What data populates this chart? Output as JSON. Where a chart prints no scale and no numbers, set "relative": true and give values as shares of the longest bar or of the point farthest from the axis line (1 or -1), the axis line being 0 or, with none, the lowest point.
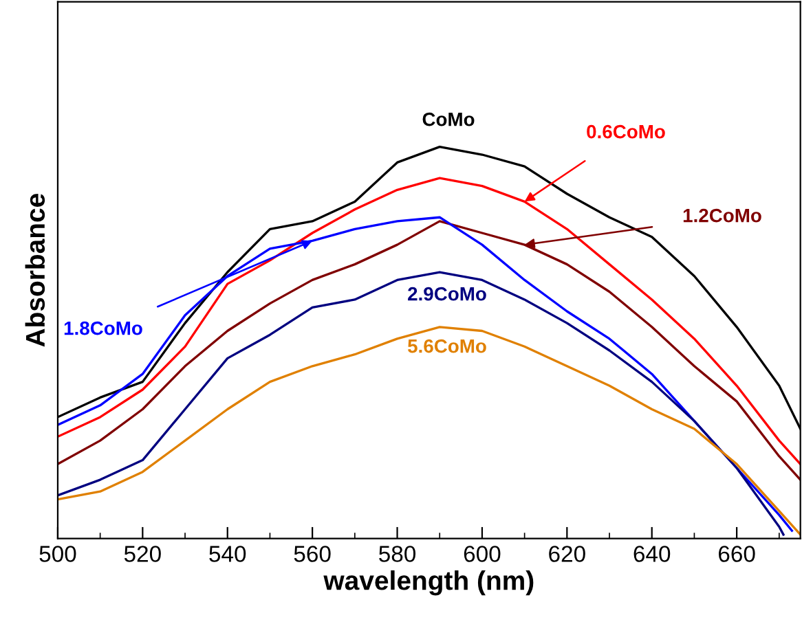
{
  "chart_data": {
    "type": "line",
    "relative": true,
    "xlabel": "wavelength (nm)",
    "ylabel": "Absorbance",
    "xlim": [
      500,
      675
    ],
    "xticks": [
      500,
      520,
      540,
      560,
      580,
      600,
      620,
      640,
      660
    ],
    "grid": false,
    "legend": false,
    "marker": "none",
    "line_style": "solid",
    "x": [
      500,
      510,
      520,
      530,
      540,
      550,
      560,
      570,
      580,
      590,
      600,
      610,
      620,
      630,
      640,
      650,
      660,
      670,
      675
    ],
    "series": [
      {
        "name": "CoMo",
        "color": "#000000",
        "values": [
          0.31,
          0.36,
          0.4,
          0.55,
          0.68,
          0.79,
          0.81,
          0.86,
          0.96,
          1.0,
          0.98,
          0.95,
          0.88,
          0.82,
          0.77,
          0.67,
          0.54,
          0.39,
          0.28
        ]
      },
      {
        "name": "0.6CoMo",
        "color": "#ff0000",
        "values": [
          0.26,
          0.31,
          0.38,
          0.49,
          0.65,
          0.71,
          0.78,
          0.84,
          0.89,
          0.92,
          0.9,
          0.86,
          0.79,
          0.7,
          0.61,
          0.51,
          0.39,
          0.25,
          0.19
        ]
      },
      {
        "name": "1.2CoMo",
        "color": "#800000",
        "values": [
          0.19,
          0.25,
          0.33,
          0.44,
          0.53,
          0.6,
          0.66,
          0.7,
          0.75,
          0.81,
          0.78,
          0.75,
          0.7,
          0.63,
          0.54,
          0.44,
          0.35,
          0.21,
          0.15
        ]
      },
      {
        "name": "1.8CoMo",
        "color": "#0000ff",
        "x": [
          500,
          510,
          520,
          530,
          540,
          550,
          560,
          570,
          580,
          590,
          600,
          610,
          620,
          630,
          640,
          650,
          660,
          670,
          673
        ],
        "values": [
          0.29,
          0.34,
          0.42,
          0.57,
          0.67,
          0.74,
          0.76,
          0.79,
          0.81,
          0.82,
          0.75,
          0.66,
          0.58,
          0.51,
          0.42,
          0.3,
          0.18,
          0.06,
          0.02
        ]
      },
      {
        "name": "2.9CoMo",
        "color": "#000080",
        "x": [
          500,
          510,
          520,
          530,
          540,
          550,
          560,
          570,
          580,
          590,
          600,
          610,
          620,
          630,
          640,
          650,
          660,
          670,
          671
        ],
        "values": [
          0.11,
          0.15,
          0.2,
          0.33,
          0.46,
          0.52,
          0.59,
          0.61,
          0.66,
          0.68,
          0.66,
          0.61,
          0.55,
          0.48,
          0.4,
          0.3,
          0.18,
          0.03,
          0.01
        ]
      },
      {
        "name": "5.6CoMo",
        "color": "#e08000",
        "values": [
          0.1,
          0.12,
          0.17,
          0.25,
          0.33,
          0.4,
          0.44,
          0.47,
          0.51,
          0.54,
          0.53,
          0.49,
          0.44,
          0.39,
          0.33,
          0.28,
          0.19,
          0.07,
          0.01
        ]
      }
    ]
  }
}
